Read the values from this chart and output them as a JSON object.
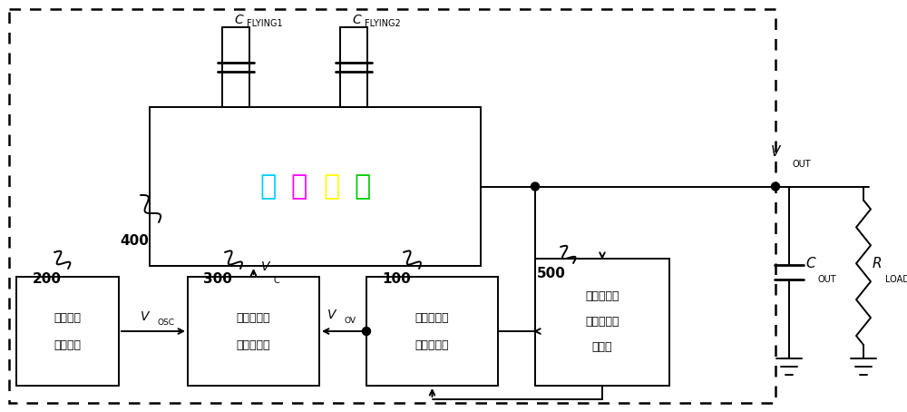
{
  "fig_w": 10.0,
  "fig_h": 4.54,
  "dpi": 100,
  "boost_chars": [
    "升",
    "压",
    "模",
    "块"
  ],
  "boost_colors": [
    "#00ccff",
    "#ff00ff",
    "#ffff00",
    "#00cc00"
  ],
  "osc_lines": [
    "工作时钟",
    "产生模块"
  ],
  "ctrl_lines": [
    "升压控制信",
    "号产生模块"
  ],
  "ovp_lines": [
    "过压保护信",
    "号产生模块"
  ],
  "ripple_lines": [
    "输出电压纹",
    "波检测和控",
    "制模块"
  ]
}
